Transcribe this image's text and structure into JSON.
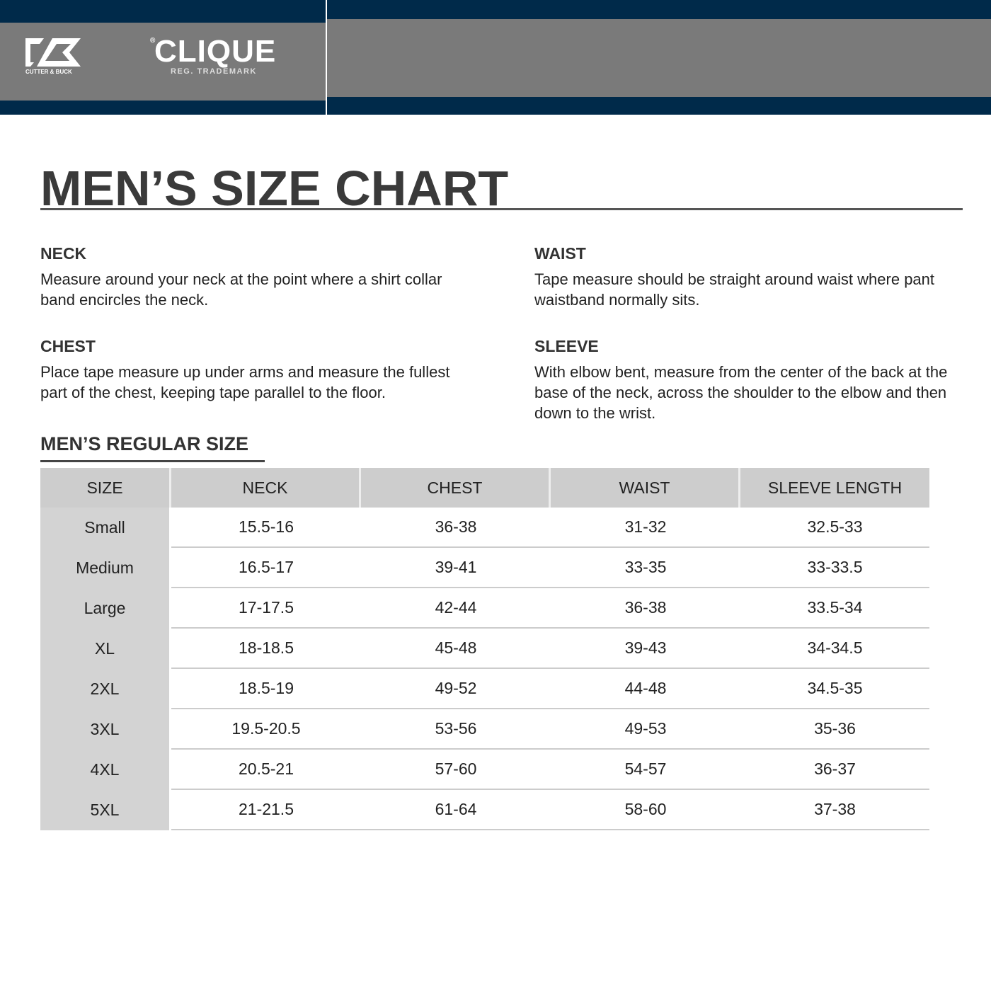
{
  "header": {
    "brand1": "CUTTER & BUCK",
    "brand2": "CLIQUE",
    "brand2_mark": "®",
    "brand2_sub": "REG. TRADEMARK",
    "colors": {
      "navy": "#002a4a",
      "grey": "#7a7a7a"
    }
  },
  "title": "MEN’S SIZE CHART",
  "guides": [
    {
      "heading": "NECK",
      "text": "Measure around your neck at the point where a shirt collar band encircles the neck."
    },
    {
      "heading": "WAIST",
      "text": "Tape measure should be straight around waist where pant waistband normally sits."
    },
    {
      "heading": "CHEST",
      "text": "Place tape measure up under arms and measure the fullest part of the chest, keeping tape parallel to the floor."
    },
    {
      "heading": "SLEEVE",
      "text": "With elbow bent, measure from the center of the back at the base of the neck, across the shoulder to the elbow and then down to the wrist."
    }
  ],
  "section": "MEN’S REGULAR SIZE",
  "table": {
    "headers": [
      "SIZE",
      "NECK",
      "CHEST",
      "WAIST",
      "SLEEVE LENGTH"
    ],
    "rows": [
      [
        "Small",
        "15.5-16",
        "36-38",
        "31-32",
        "32.5-33"
      ],
      [
        "Medium",
        "16.5-17",
        "39-41",
        "33-35",
        "33-33.5"
      ],
      [
        "Large",
        "17-17.5",
        "42-44",
        "36-38",
        "33.5-34"
      ],
      [
        "XL",
        "18-18.5",
        "45-48",
        "39-43",
        "34-34.5"
      ],
      [
        "2XL",
        "18.5-19",
        "49-52",
        "44-48",
        "34.5-35"
      ],
      [
        "3XL",
        "19.5-20.5",
        "53-56",
        "49-53",
        "35-36"
      ],
      [
        "4XL",
        "20.5-21",
        "57-60",
        "54-57",
        "36-37"
      ],
      [
        "5XL",
        "21-21.5",
        "61-64",
        "58-60",
        "37-38"
      ]
    ]
  }
}
